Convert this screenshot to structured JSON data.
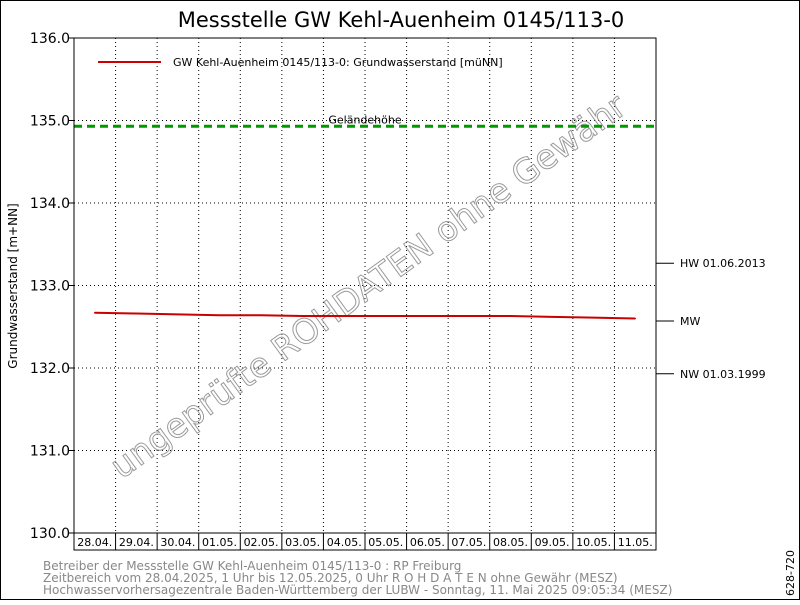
{
  "chart_data": {
    "type": "line",
    "title": "Messstelle GW Kehl-Auenheim 0145/113-0",
    "ylabel": "Grundwasserstand [m+NN]",
    "ylim": [
      130.0,
      136.0
    ],
    "yticks": [
      "130.0",
      "131.0",
      "132.0",
      "133.0",
      "134.0",
      "135.0",
      "136.0"
    ],
    "xticks": [
      "28.04.",
      "29.04.",
      "30.04.",
      "01.05.",
      "02.05.",
      "03.05.",
      "04.05.",
      "05.05.",
      "06.05.",
      "07.05.",
      "08.05.",
      "09.05.",
      "10.05.",
      "11.05."
    ],
    "grid": true,
    "legend_position": "top-left",
    "series": [
      {
        "name": "GW Kehl-Auenheim 0145/113-0: Grundwasserstand  [müNN]",
        "color": "#cc0000",
        "x": [
          "28.04.",
          "29.04.",
          "30.04.",
          "01.05.",
          "02.05.",
          "03.05.",
          "04.05.",
          "05.05.",
          "06.05.",
          "07.05.",
          "08.05.",
          "09.05.",
          "10.05.",
          "11.05."
        ],
        "values": [
          132.67,
          132.66,
          132.65,
          132.64,
          132.64,
          132.63,
          132.63,
          132.63,
          132.63,
          132.63,
          132.63,
          132.62,
          132.61,
          132.6
        ]
      }
    ],
    "reference_lines": [
      {
        "label": "Geländehöhe",
        "value": 134.93,
        "color": "#009900",
        "style": "dashed"
      }
    ],
    "side_markers": [
      {
        "label": "HW 01.06.2013",
        "value": 133.27
      },
      {
        "label": "MW",
        "value": 132.57
      },
      {
        "label": "NW 01.03.1999",
        "value": 131.93
      }
    ],
    "watermark": "ungeprüfte ROHDATEN ohne Gewähr"
  },
  "footer": {
    "line1": "Betreiber der Messstelle GW Kehl-Auenheim 0145/113-0 : RP Freiburg",
    "line2": "Zeitbereich vom 28.04.2025, 1 Uhr bis 12.05.2025, 0 Uhr   R O H D A T E N ohne Gewähr (MESZ)",
    "line3": "Hochwasservorhersagezentrale Baden-Württemberg der LUBW - Sonntag, 11. Mai 2025 09:05:34 (MESZ)"
  },
  "code": "628-720"
}
